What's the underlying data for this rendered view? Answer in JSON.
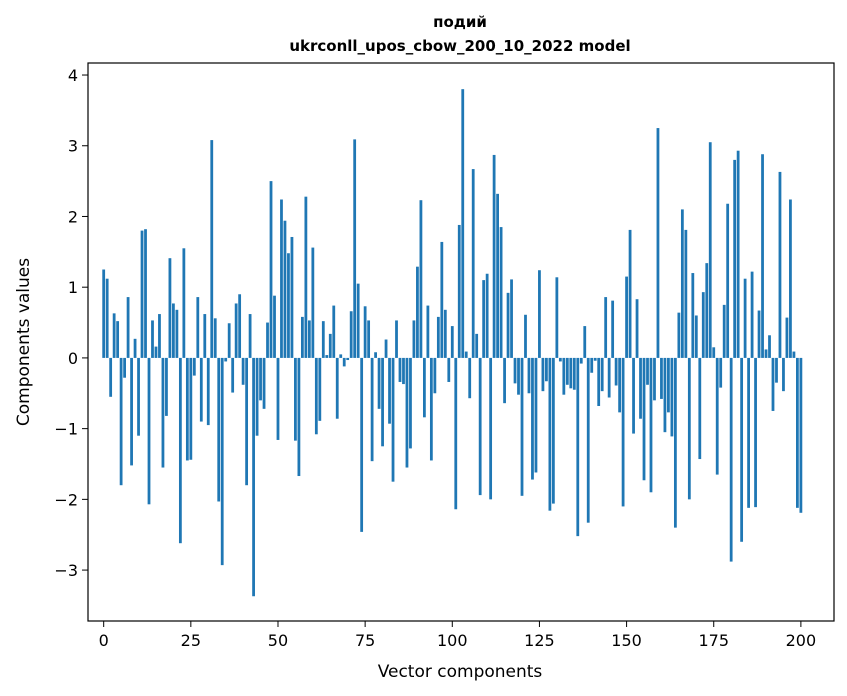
{
  "chart_data": {
    "type": "bar",
    "title_line1": "подий",
    "title_line2": "ukrconll_upos_cbow_200_10_2022 model",
    "xlabel": "Vector components",
    "ylabel": "Components values",
    "xlim": [
      -4.5,
      209.5
    ],
    "ylim": [
      -3.72,
      4.17
    ],
    "xticks": [
      0,
      25,
      50,
      75,
      100,
      125,
      150,
      175,
      200
    ],
    "yticks": [
      -3,
      -2,
      -1,
      0,
      1,
      2,
      3,
      4
    ],
    "ytick_labels": [
      "−3",
      "−2",
      "−1",
      "0",
      "1",
      "2",
      "3",
      "4"
    ],
    "bar_color": "#1f77b4",
    "grid": false,
    "values": [
      1.25,
      1.12,
      -0.55,
      0.63,
      0.52,
      -1.8,
      -0.28,
      0.86,
      -1.52,
      0.27,
      -1.1,
      1.8,
      1.82,
      -2.07,
      0.53,
      0.16,
      0.62,
      -1.55,
      -0.82,
      1.41,
      0.77,
      0.68,
      -2.62,
      1.55,
      -1.45,
      -1.44,
      -0.25,
      0.86,
      -0.9,
      0.62,
      -0.95,
      3.08,
      0.56,
      -2.03,
      -2.93,
      -0.05,
      0.49,
      -0.49,
      0.77,
      0.9,
      -0.38,
      -1.8,
      0.62,
      -3.37,
      -1.1,
      -0.6,
      -0.72,
      0.5,
      2.5,
      0.88,
      -1.16,
      2.24,
      1.94,
      1.48,
      1.71,
      -1.17,
      -1.67,
      0.58,
      2.28,
      0.53,
      1.56,
      -1.08,
      -0.89,
      0.52,
      0.04,
      0.34,
      0.74,
      -0.86,
      0.05,
      -0.12,
      -0.03,
      0.66,
      3.09,
      1.05,
      -2.46,
      0.73,
      0.53,
      -1.46,
      0.08,
      -0.72,
      -1.25,
      0.26,
      -0.93,
      -1.75,
      0.53,
      -0.34,
      -0.37,
      -1.55,
      -1.28,
      0.53,
      1.29,
      2.23,
      -0.84,
      0.74,
      -1.45,
      -0.5,
      0.58,
      1.64,
      0.68,
      -0.34,
      0.45,
      -2.14,
      1.88,
      3.8,
      0.09,
      -0.57,
      2.67,
      0.34,
      -1.94,
      1.1,
      1.19,
      -2.0,
      2.87,
      2.32,
      1.85,
      -0.64,
      0.92,
      1.11,
      -0.36,
      -0.52,
      -1.95,
      0.61,
      -0.5,
      -1.72,
      -1.62,
      1.24,
      -0.47,
      -0.33,
      -2.16,
      -2.06,
      1.14,
      -0.05,
      -0.52,
      -0.38,
      -0.43,
      -0.45,
      -2.52,
      -0.08,
      0.45,
      -2.33,
      -0.21,
      -0.04,
      -0.68,
      -0.47,
      0.86,
      -0.56,
      0.81,
      -0.39,
      -0.77,
      -2.1,
      1.15,
      1.81,
      -1.07,
      0.83,
      -0.86,
      -1.73,
      -0.38,
      -1.9,
      -0.6,
      3.25,
      -0.58,
      -1.05,
      -0.77,
      -1.11,
      -2.4,
      0.64,
      2.1,
      1.81,
      -2.0,
      1.2,
      0.6,
      -1.43,
      0.93,
      1.34,
      3.05,
      0.15,
      -1.65,
      -0.42,
      0.75,
      2.18,
      -2.88,
      2.8,
      2.93,
      -2.6,
      1.12,
      -2.12,
      1.22,
      -2.11,
      0.67,
      2.88,
      0.12,
      0.32,
      -0.75,
      -0.35,
      2.63,
      -0.47,
      0.57,
      2.24,
      0.09,
      -2.12,
      -2.19
    ]
  }
}
